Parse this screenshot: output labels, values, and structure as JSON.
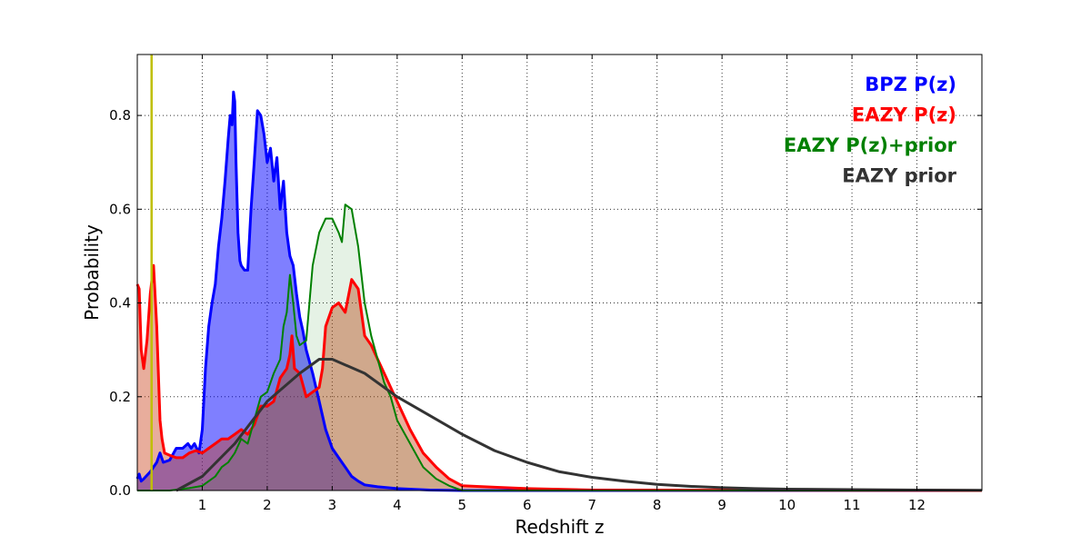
{
  "chart_data": {
    "type": "line",
    "xlabel": "Redshift z",
    "ylabel": "Probability",
    "xlim": [
      0,
      13
    ],
    "ylim": [
      0,
      0.93
    ],
    "x_ticks": [
      1,
      2,
      3,
      4,
      5,
      6,
      7,
      8,
      9,
      10,
      11,
      12
    ],
    "x_tick_labels": [
      "1",
      "2",
      "3",
      "4",
      "5",
      "6",
      "7",
      "8",
      "9",
      "10",
      "11",
      "12"
    ],
    "y_ticks": [
      0,
      0.2,
      0.4,
      0.6,
      0.8
    ],
    "y_tick_labels": [
      "0.0",
      "0.2",
      "0.4",
      "0.6",
      "0.8"
    ],
    "grid": true,
    "legend_position": "top-right",
    "vertical_line": {
      "x": 0.22,
      "color": "#bfbf00"
    },
    "series": [
      {
        "name": "BPZ P(z)",
        "color": "#0000ff",
        "fill": "#0000ff",
        "fill_opacity": 0.5,
        "line_width": 3,
        "x": [
          0,
          0.03,
          0.06,
          0.1,
          0.2,
          0.3,
          0.35,
          0.4,
          0.5,
          0.6,
          0.7,
          0.78,
          0.83,
          0.88,
          0.95,
          1.0,
          1.05,
          1.1,
          1.15,
          1.2,
          1.25,
          1.3,
          1.35,
          1.4,
          1.43,
          1.46,
          1.48,
          1.5,
          1.52,
          1.55,
          1.58,
          1.6,
          1.65,
          1.7,
          1.75,
          1.8,
          1.85,
          1.9,
          1.95,
          2.0,
          2.05,
          2.1,
          2.15,
          2.2,
          2.25,
          2.3,
          2.35,
          2.4,
          2.45,
          2.5,
          2.55,
          2.6,
          2.7,
          2.8,
          2.9,
          3.0,
          3.1,
          3.2,
          3.3,
          3.4,
          3.5,
          3.7,
          4.0,
          4.5,
          5.0,
          6.0,
          13.0
        ],
        "y": [
          0.025,
          0.035,
          0.02,
          0.025,
          0.04,
          0.06,
          0.08,
          0.06,
          0.065,
          0.09,
          0.09,
          0.1,
          0.09,
          0.1,
          0.08,
          0.13,
          0.26,
          0.35,
          0.4,
          0.44,
          0.52,
          0.58,
          0.66,
          0.75,
          0.8,
          0.78,
          0.85,
          0.83,
          0.7,
          0.55,
          0.49,
          0.48,
          0.47,
          0.47,
          0.6,
          0.7,
          0.81,
          0.8,
          0.76,
          0.7,
          0.73,
          0.66,
          0.71,
          0.6,
          0.66,
          0.55,
          0.5,
          0.48,
          0.42,
          0.37,
          0.34,
          0.3,
          0.25,
          0.19,
          0.13,
          0.09,
          0.07,
          0.05,
          0.03,
          0.02,
          0.012,
          0.008,
          0.004,
          0.001,
          0.0,
          0.0,
          0.0
        ]
      },
      {
        "name": "EAZY P(z)",
        "color": "#ff0000",
        "fill": "#c83c14",
        "fill_opacity": 0.42,
        "line_width": 3,
        "x": [
          0,
          0.03,
          0.06,
          0.1,
          0.15,
          0.2,
          0.25,
          0.3,
          0.35,
          0.38,
          0.42,
          0.5,
          0.6,
          0.7,
          0.8,
          0.9,
          1.0,
          1.1,
          1.2,
          1.3,
          1.4,
          1.5,
          1.6,
          1.7,
          1.8,
          1.9,
          2.0,
          2.1,
          2.2,
          2.3,
          2.35,
          2.38,
          2.42,
          2.5,
          2.6,
          2.7,
          2.8,
          2.85,
          2.9,
          3.0,
          3.1,
          3.2,
          3.3,
          3.4,
          3.5,
          3.6,
          3.7,
          3.8,
          3.9,
          4.0,
          4.2,
          4.4,
          4.6,
          4.8,
          5.0,
          5.5,
          6.0,
          7.0,
          13.0
        ],
        "y": [
          0.44,
          0.43,
          0.3,
          0.26,
          0.32,
          0.42,
          0.48,
          0.35,
          0.15,
          0.11,
          0.08,
          0.075,
          0.07,
          0.07,
          0.08,
          0.085,
          0.08,
          0.09,
          0.1,
          0.11,
          0.11,
          0.12,
          0.13,
          0.12,
          0.14,
          0.18,
          0.18,
          0.19,
          0.24,
          0.26,
          0.29,
          0.33,
          0.26,
          0.25,
          0.2,
          0.21,
          0.22,
          0.26,
          0.35,
          0.39,
          0.4,
          0.38,
          0.45,
          0.43,
          0.33,
          0.31,
          0.28,
          0.25,
          0.22,
          0.19,
          0.13,
          0.08,
          0.05,
          0.025,
          0.01,
          0.007,
          0.004,
          0.001,
          0.0
        ]
      },
      {
        "name": "EAZY P(z)+prior",
        "color": "#008000",
        "fill": "#008000",
        "fill_opacity": 0.1,
        "line_width": 2,
        "x": [
          0,
          0.5,
          0.8,
          1.0,
          1.1,
          1.2,
          1.3,
          1.4,
          1.5,
          1.6,
          1.7,
          1.8,
          1.9,
          2.0,
          2.1,
          2.2,
          2.25,
          2.3,
          2.35,
          2.4,
          2.45,
          2.5,
          2.6,
          2.7,
          2.8,
          2.9,
          3.0,
          3.1,
          3.15,
          3.2,
          3.3,
          3.4,
          3.5,
          3.6,
          3.7,
          3.8,
          3.9,
          4.0,
          4.2,
          4.4,
          4.6,
          4.8,
          4.9,
          5.0,
          5.5,
          13.0
        ],
        "y": [
          0.0,
          0.0,
          0.005,
          0.01,
          0.02,
          0.03,
          0.05,
          0.06,
          0.08,
          0.11,
          0.1,
          0.15,
          0.2,
          0.21,
          0.25,
          0.28,
          0.35,
          0.38,
          0.46,
          0.4,
          0.33,
          0.31,
          0.32,
          0.48,
          0.55,
          0.58,
          0.58,
          0.55,
          0.53,
          0.61,
          0.6,
          0.52,
          0.4,
          0.33,
          0.28,
          0.23,
          0.2,
          0.15,
          0.1,
          0.05,
          0.025,
          0.01,
          0.005,
          0.0,
          0.0,
          0.0
        ]
      },
      {
        "name": "EAZY prior",
        "color": "#333333",
        "fill": null,
        "fill_opacity": 0,
        "line_width": 3,
        "x": [
          0.6,
          1.0,
          1.5,
          2.0,
          2.5,
          2.8,
          3.0,
          3.5,
          4.0,
          4.5,
          5.0,
          5.5,
          6.0,
          6.5,
          7.0,
          7.5,
          8.0,
          8.5,
          9.0,
          9.5,
          10.0,
          11.0,
          12.0,
          13.0
        ],
        "y": [
          0.0,
          0.03,
          0.1,
          0.19,
          0.25,
          0.28,
          0.28,
          0.25,
          0.2,
          0.16,
          0.12,
          0.085,
          0.06,
          0.04,
          0.028,
          0.02,
          0.013,
          0.009,
          0.006,
          0.004,
          0.003,
          0.002,
          0.001,
          0.0005
        ]
      }
    ]
  }
}
